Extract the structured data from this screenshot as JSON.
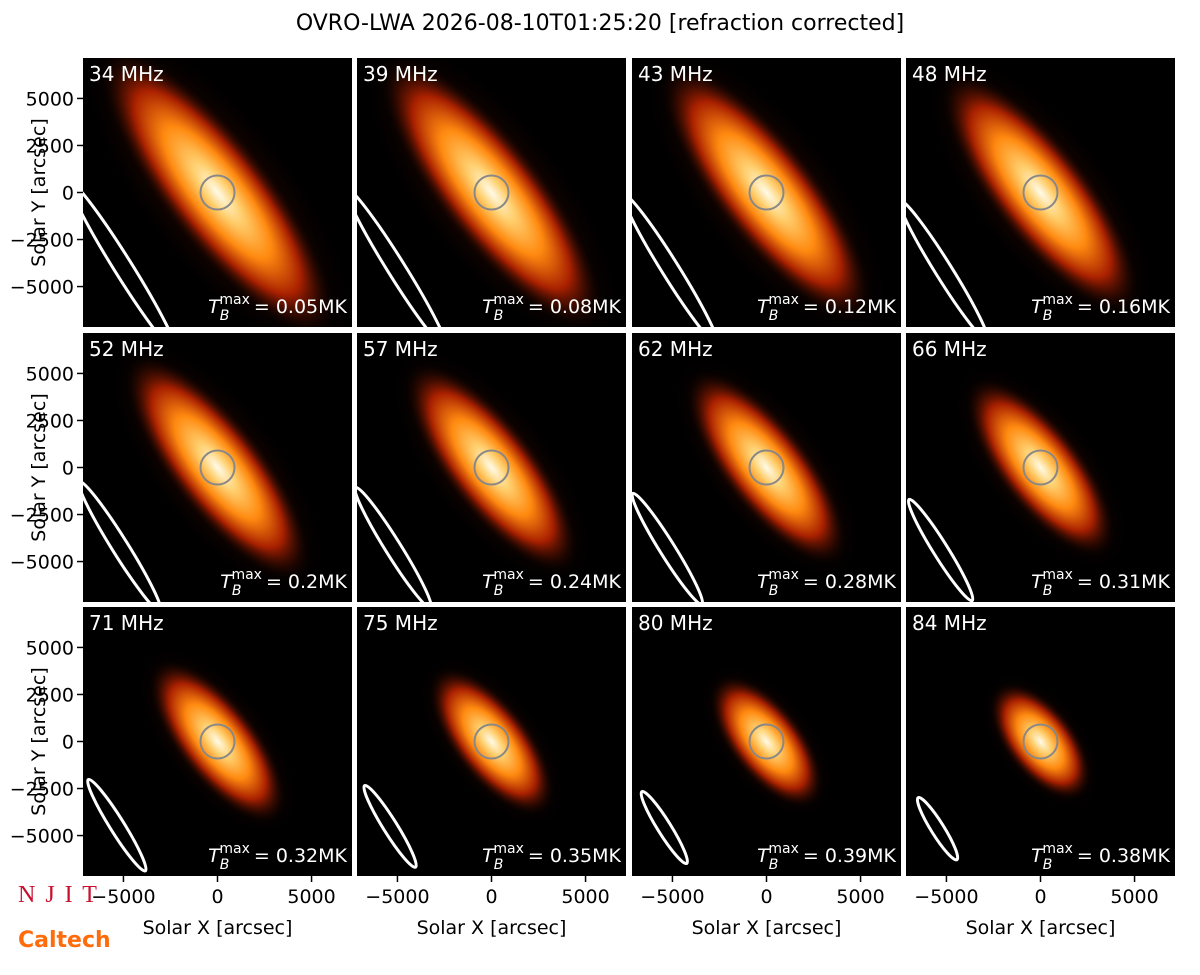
{
  "title": "OVRO-LWA 2026-08-10T01:25:20 [refraction corrected]",
  "tb": {
    "symbol": "T",
    "sub": "B",
    "sup": "max"
  },
  "logos": {
    "njit": "N J I T",
    "caltech": "Caltech"
  },
  "chart_data": [
    {
      "type": "image",
      "title": "34 MHz",
      "annotation": "= 0.05MK",
      "xlim": [
        -7150,
        7150
      ],
      "ylim": [
        -7150,
        7150
      ],
      "ylabel": "Solar Y [arcsec]",
      "yticks": [
        {
          "value": -5000,
          "label": "−5000"
        },
        {
          "value": -2500,
          "label": "−2500"
        },
        0,
        2500,
        5000
      ]
    },
    {
      "type": "image",
      "title": "39 MHz",
      "annotation": "= 0.08MK",
      "xlim": [
        -7150,
        7150
      ],
      "ylim": [
        -7150,
        7150
      ]
    },
    {
      "type": "image",
      "title": "43 MHz",
      "annotation": "= 0.12MK",
      "xlim": [
        -7150,
        7150
      ],
      "ylim": [
        -7150,
        7150
      ]
    },
    {
      "type": "image",
      "title": "48 MHz",
      "annotation": "= 0.16MK",
      "xlim": [
        -7150,
        7150
      ],
      "ylim": [
        -7150,
        7150
      ]
    },
    {
      "type": "image",
      "title": "52 MHz",
      "annotation": "= 0.2MK",
      "xlim": [
        -7150,
        7150
      ],
      "ylim": [
        -7150,
        7150
      ],
      "ylabel": "Solar Y [arcsec]",
      "yticks": [
        {
          "value": -5000,
          "label": "−5000"
        },
        {
          "value": -2500,
          "label": "−2500"
        },
        0,
        2500,
        5000
      ]
    },
    {
      "type": "image",
      "title": "57 MHz",
      "annotation": "= 0.24MK",
      "xlim": [
        -7150,
        7150
      ],
      "ylim": [
        -7150,
        7150
      ]
    },
    {
      "type": "image",
      "title": "62 MHz",
      "annotation": "= 0.28MK",
      "xlim": [
        -7150,
        7150
      ],
      "ylim": [
        -7150,
        7150
      ]
    },
    {
      "type": "image",
      "title": "66 MHz",
      "annotation": "= 0.31MK",
      "xlim": [
        -7150,
        7150
      ],
      "ylim": [
        -7150,
        7150
      ]
    },
    {
      "type": "image",
      "title": "71 MHz",
      "annotation": "= 0.32MK",
      "xlim": [
        -7150,
        7150
      ],
      "ylim": [
        -7150,
        7150
      ],
      "ylabel": "Solar Y [arcsec]",
      "yticks": [
        {
          "value": -5000,
          "label": "−5000"
        },
        {
          "value": -2500,
          "label": "−2500"
        },
        0,
        2500,
        5000
      ],
      "xlabel": "Solar X [arcsec]",
      "xticks": [
        {
          "value": -5000,
          "label": "−5000"
        },
        0,
        5000
      ]
    },
    {
      "type": "image",
      "title": "75 MHz",
      "annotation": "= 0.35MK",
      "xlim": [
        -7150,
        7150
      ],
      "ylim": [
        -7150,
        7150
      ],
      "xlabel": "Solar X [arcsec]",
      "xticks": [
        {
          "value": -5000,
          "label": "−5000"
        },
        0,
        5000
      ]
    },
    {
      "type": "image",
      "title": "80 MHz",
      "annotation": "= 0.39MK",
      "xlim": [
        -7150,
        7150
      ],
      "ylim": [
        -7150,
        7150
      ],
      "xlabel": "Solar X [arcsec]",
      "xticks": [
        {
          "value": -5000,
          "label": "−5000"
        },
        0,
        5000
      ]
    },
    {
      "type": "image",
      "title": "84 MHz",
      "annotation": "= 0.38MK",
      "xlim": [
        -7150,
        7150
      ],
      "ylim": [
        -7150,
        7150
      ],
      "xlabel": "Solar X [arcsec]",
      "xticks": [
        {
          "value": -5000,
          "label": "−5000"
        },
        0,
        5000
      ]
    }
  ]
}
